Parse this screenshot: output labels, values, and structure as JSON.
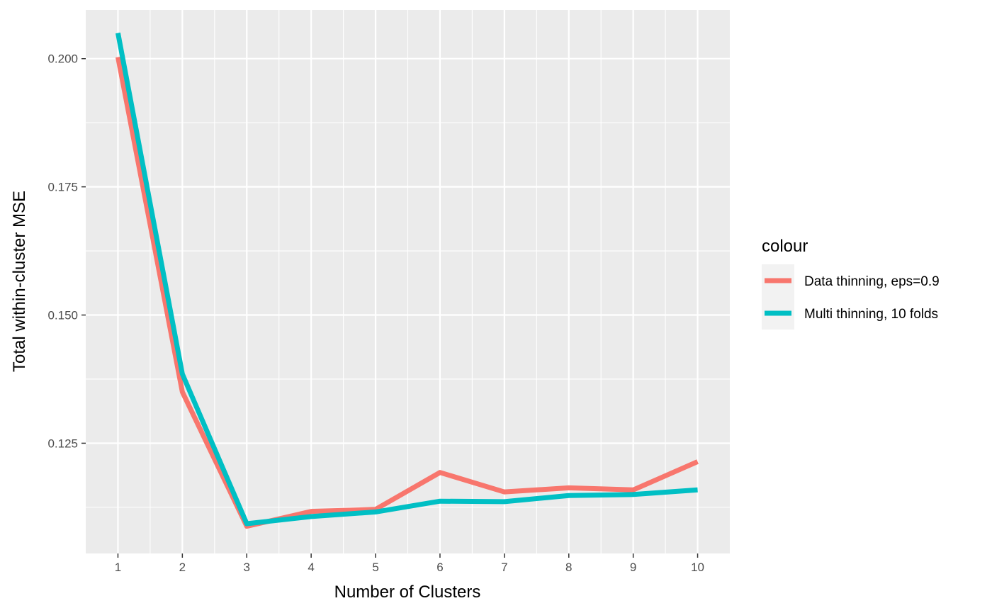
{
  "chart_data": {
    "type": "line",
    "title": "",
    "xlabel": "Number of Clusters",
    "ylabel": "Total within-cluster MSE",
    "x": [
      1,
      2,
      3,
      4,
      5,
      6,
      7,
      8,
      9,
      10
    ],
    "x_ticks": [
      "1",
      "2",
      "3",
      "4",
      "5",
      "6",
      "7",
      "8",
      "9",
      "10"
    ],
    "y_ticks": [
      "0.125",
      "0.150",
      "0.175",
      "0.200"
    ],
    "xlim": [
      0.5,
      10.5
    ],
    "ylim": [
      0.1035,
      0.2095
    ],
    "grid": true,
    "legend": {
      "title": "colour",
      "placement": "right"
    },
    "series": [
      {
        "name": "Data thinning, eps=0.9",
        "color": "#F8766D",
        "values": [
          0.2003,
          0.135,
          0.1088,
          0.1117,
          0.1121,
          0.1193,
          0.1155,
          0.1163,
          0.1159,
          0.1214
        ]
      },
      {
        "name": "Multi thinning, 10 folds",
        "color": "#00BFC4",
        "values": [
          0.205,
          0.1385,
          0.1093,
          0.1107,
          0.1116,
          0.1137,
          0.1136,
          0.1148,
          0.115,
          0.1159
        ]
      }
    ]
  }
}
